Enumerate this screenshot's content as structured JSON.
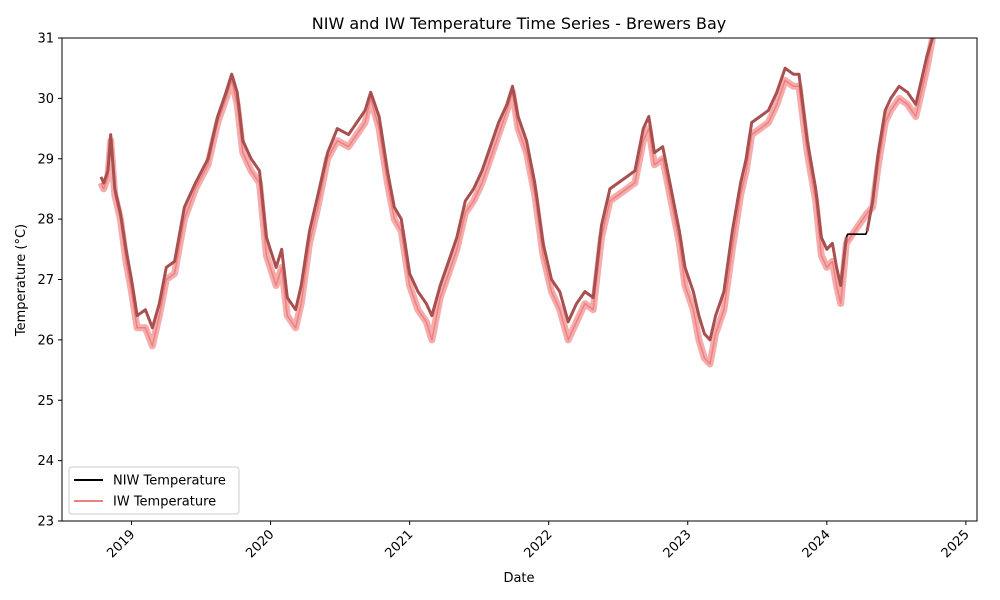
{
  "chart_data": {
    "type": "line",
    "title": "NIW and IW Temperature Time Series - Brewers Bay",
    "xlabel": "Date",
    "ylabel": "Temperature (°C)",
    "xlim": [
      2018.5,
      2025.08
    ],
    "ylim": [
      23,
      31
    ],
    "x_ticks": [
      2019,
      2020,
      2021,
      2022,
      2023,
      2024,
      2025
    ],
    "y_ticks": [
      23,
      24,
      25,
      26,
      27,
      28,
      29,
      30,
      31
    ],
    "legend_position": "lower-left",
    "series": [
      {
        "name": "NIW Temperature",
        "color": "#000000",
        "points": [
          [
            2018.78,
            28.7
          ],
          [
            2018.8,
            28.6
          ],
          [
            2018.83,
            28.8
          ],
          [
            2018.85,
            29.4
          ],
          [
            2018.88,
            28.5
          ],
          [
            2018.92,
            28.1
          ],
          [
            2018.96,
            27.5
          ],
          [
            2019.0,
            27.0
          ],
          [
            2019.04,
            26.4
          ],
          [
            2019.1,
            26.5
          ],
          [
            2019.15,
            26.2
          ],
          [
            2019.2,
            26.6
          ],
          [
            2019.25,
            27.2
          ],
          [
            2019.31,
            27.3
          ],
          [
            2019.38,
            28.2
          ],
          [
            2019.46,
            28.6
          ],
          [
            2019.55,
            29.0
          ],
          [
            2019.62,
            29.7
          ],
          [
            2019.68,
            30.1
          ],
          [
            2019.72,
            30.4
          ],
          [
            2019.76,
            30.1
          ],
          [
            2019.8,
            29.3
          ],
          [
            2019.86,
            29.0
          ],
          [
            2019.92,
            28.8
          ],
          [
            2019.97,
            27.7
          ],
          [
            2020.04,
            27.2
          ],
          [
            2020.08,
            27.5
          ],
          [
            2020.12,
            26.7
          ],
          [
            2020.18,
            26.5
          ],
          [
            2020.22,
            26.9
          ],
          [
            2020.28,
            27.8
          ],
          [
            2020.34,
            28.4
          ],
          [
            2020.41,
            29.1
          ],
          [
            2020.48,
            29.5
          ],
          [
            2020.56,
            29.4
          ],
          [
            2020.62,
            29.6
          ],
          [
            2020.68,
            29.8
          ],
          [
            2020.72,
            30.1
          ],
          [
            2020.78,
            29.7
          ],
          [
            2020.84,
            28.8
          ],
          [
            2020.89,
            28.2
          ],
          [
            2020.94,
            28.0
          ],
          [
            2021.0,
            27.1
          ],
          [
            2021.06,
            26.8
          ],
          [
            2021.12,
            26.6
          ],
          [
            2021.16,
            26.4
          ],
          [
            2021.22,
            26.9
          ],
          [
            2021.28,
            27.3
          ],
          [
            2021.34,
            27.7
          ],
          [
            2021.4,
            28.3
          ],
          [
            2021.46,
            28.5
          ],
          [
            2021.52,
            28.8
          ],
          [
            2021.58,
            29.2
          ],
          [
            2021.64,
            29.6
          ],
          [
            2021.7,
            29.9
          ],
          [
            2021.74,
            30.2
          ],
          [
            2021.78,
            29.7
          ],
          [
            2021.84,
            29.3
          ],
          [
            2021.9,
            28.6
          ],
          [
            2021.96,
            27.6
          ],
          [
            2022.02,
            27.0
          ],
          [
            2022.08,
            26.8
          ],
          [
            2022.14,
            26.3
          ],
          [
            2022.2,
            26.6
          ],
          [
            2022.26,
            26.8
          ],
          [
            2022.32,
            26.7
          ],
          [
            2022.38,
            27.9
          ],
          [
            2022.44,
            28.5
          ],
          [
            2022.5,
            28.6
          ],
          [
            2022.56,
            28.7
          ],
          [
            2022.62,
            28.8
          ],
          [
            2022.68,
            29.5
          ],
          [
            2022.72,
            29.7
          ],
          [
            2022.76,
            29.1
          ],
          [
            2022.82,
            29.2
          ],
          [
            2022.88,
            28.5
          ],
          [
            2022.94,
            27.8
          ],
          [
            2022.98,
            27.2
          ],
          [
            2023.04,
            26.8
          ],
          [
            2023.08,
            26.4
          ],
          [
            2023.12,
            26.1
          ],
          [
            2023.16,
            26.0
          ],
          [
            2023.2,
            26.4
          ],
          [
            2023.26,
            26.8
          ],
          [
            2023.32,
            27.8
          ],
          [
            2023.38,
            28.6
          ],
          [
            2023.42,
            29.0
          ],
          [
            2023.46,
            29.6
          ],
          [
            2023.52,
            29.7
          ],
          [
            2023.58,
            29.8
          ],
          [
            2023.64,
            30.1
          ],
          [
            2023.7,
            30.5
          ],
          [
            2023.76,
            30.4
          ],
          [
            2023.8,
            30.4
          ],
          [
            2023.86,
            29.3
          ],
          [
            2023.92,
            28.5
          ],
          [
            2023.96,
            27.7
          ],
          [
            2024.0,
            27.5
          ],
          [
            2024.04,
            27.6
          ],
          [
            2024.07,
            27.2
          ],
          [
            2024.1,
            26.9
          ],
          [
            2024.14,
            27.7
          ],
          [
            2024.15,
            27.75
          ],
          [
            2024.28,
            27.75
          ],
          [
            2024.29,
            27.8
          ],
          [
            2024.33,
            28.3
          ],
          [
            2024.37,
            29.1
          ],
          [
            2024.42,
            29.8
          ],
          [
            2024.46,
            30.0
          ],
          [
            2024.52,
            30.2
          ],
          [
            2024.58,
            30.1
          ],
          [
            2024.64,
            29.9
          ],
          [
            2024.68,
            30.3
          ],
          [
            2024.72,
            30.7
          ],
          [
            2024.76,
            31.0
          ]
        ]
      },
      {
        "name": "IW Temperature",
        "color": "#f08080",
        "points": [
          [
            2018.78,
            28.6
          ],
          [
            2018.8,
            28.5
          ],
          [
            2018.83,
            28.7
          ],
          [
            2018.85,
            29.3
          ],
          [
            2018.88,
            28.4
          ],
          [
            2018.92,
            28.0
          ],
          [
            2018.96,
            27.3
          ],
          [
            2019.0,
            26.8
          ],
          [
            2019.04,
            26.2
          ],
          [
            2019.1,
            26.2
          ],
          [
            2019.15,
            25.9
          ],
          [
            2019.2,
            26.4
          ],
          [
            2019.25,
            27.0
          ],
          [
            2019.31,
            27.1
          ],
          [
            2019.38,
            28.0
          ],
          [
            2019.46,
            28.5
          ],
          [
            2019.55,
            28.9
          ],
          [
            2019.62,
            29.6
          ],
          [
            2019.68,
            30.0
          ],
          [
            2019.72,
            30.3
          ],
          [
            2019.76,
            29.9
          ],
          [
            2019.8,
            29.1
          ],
          [
            2019.86,
            28.8
          ],
          [
            2019.92,
            28.6
          ],
          [
            2019.97,
            27.4
          ],
          [
            2020.04,
            26.9
          ],
          [
            2020.08,
            27.2
          ],
          [
            2020.12,
            26.4
          ],
          [
            2020.18,
            26.2
          ],
          [
            2020.22,
            26.6
          ],
          [
            2020.28,
            27.6
          ],
          [
            2020.34,
            28.2
          ],
          [
            2020.41,
            29.0
          ],
          [
            2020.48,
            29.3
          ],
          [
            2020.56,
            29.2
          ],
          [
            2020.62,
            29.4
          ],
          [
            2020.68,
            29.6
          ],
          [
            2020.72,
            30.0
          ],
          [
            2020.78,
            29.5
          ],
          [
            2020.84,
            28.6
          ],
          [
            2020.89,
            28.0
          ],
          [
            2020.94,
            27.8
          ],
          [
            2021.0,
            26.9
          ],
          [
            2021.06,
            26.5
          ],
          [
            2021.12,
            26.3
          ],
          [
            2021.16,
            26.0
          ],
          [
            2021.22,
            26.7
          ],
          [
            2021.28,
            27.1
          ],
          [
            2021.34,
            27.5
          ],
          [
            2021.4,
            28.1
          ],
          [
            2021.46,
            28.3
          ],
          [
            2021.52,
            28.6
          ],
          [
            2021.58,
            29.0
          ],
          [
            2021.64,
            29.4
          ],
          [
            2021.7,
            29.8
          ],
          [
            2021.74,
            30.1
          ],
          [
            2021.78,
            29.5
          ],
          [
            2021.84,
            29.1
          ],
          [
            2021.9,
            28.4
          ],
          [
            2021.96,
            27.4
          ],
          [
            2022.02,
            26.8
          ],
          [
            2022.08,
            26.5
          ],
          [
            2022.14,
            26.0
          ],
          [
            2022.2,
            26.3
          ],
          [
            2022.26,
            26.6
          ],
          [
            2022.32,
            26.5
          ],
          [
            2022.38,
            27.7
          ],
          [
            2022.44,
            28.3
          ],
          [
            2022.5,
            28.4
          ],
          [
            2022.56,
            28.5
          ],
          [
            2022.62,
            28.6
          ],
          [
            2022.68,
            29.3
          ],
          [
            2022.72,
            29.5
          ],
          [
            2022.76,
            28.9
          ],
          [
            2022.82,
            29.0
          ],
          [
            2022.88,
            28.3
          ],
          [
            2022.94,
            27.6
          ],
          [
            2022.98,
            26.9
          ],
          [
            2023.04,
            26.5
          ],
          [
            2023.08,
            26.0
          ],
          [
            2023.12,
            25.7
          ],
          [
            2023.16,
            25.6
          ],
          [
            2023.2,
            26.1
          ],
          [
            2023.26,
            26.5
          ],
          [
            2023.32,
            27.5
          ],
          [
            2023.38,
            28.4
          ],
          [
            2023.42,
            28.8
          ],
          [
            2023.46,
            29.4
          ],
          [
            2023.52,
            29.5
          ],
          [
            2023.58,
            29.6
          ],
          [
            2023.64,
            29.9
          ],
          [
            2023.7,
            30.3
          ],
          [
            2023.76,
            30.2
          ],
          [
            2023.8,
            30.2
          ],
          [
            2023.86,
            29.1
          ],
          [
            2023.92,
            28.3
          ],
          [
            2023.96,
            27.4
          ],
          [
            2024.0,
            27.2
          ],
          [
            2024.04,
            27.3
          ],
          [
            2024.07,
            26.9
          ],
          [
            2024.1,
            26.6
          ],
          [
            2024.14,
            27.6
          ],
          [
            2024.29,
            28.1
          ],
          [
            2024.33,
            28.2
          ],
          [
            2024.37,
            28.9
          ],
          [
            2024.42,
            29.6
          ],
          [
            2024.46,
            29.8
          ],
          [
            2024.52,
            30.0
          ],
          [
            2024.58,
            29.9
          ],
          [
            2024.64,
            29.7
          ],
          [
            2024.68,
            30.1
          ],
          [
            2024.72,
            30.5
          ],
          [
            2024.76,
            31.0
          ]
        ]
      }
    ]
  }
}
